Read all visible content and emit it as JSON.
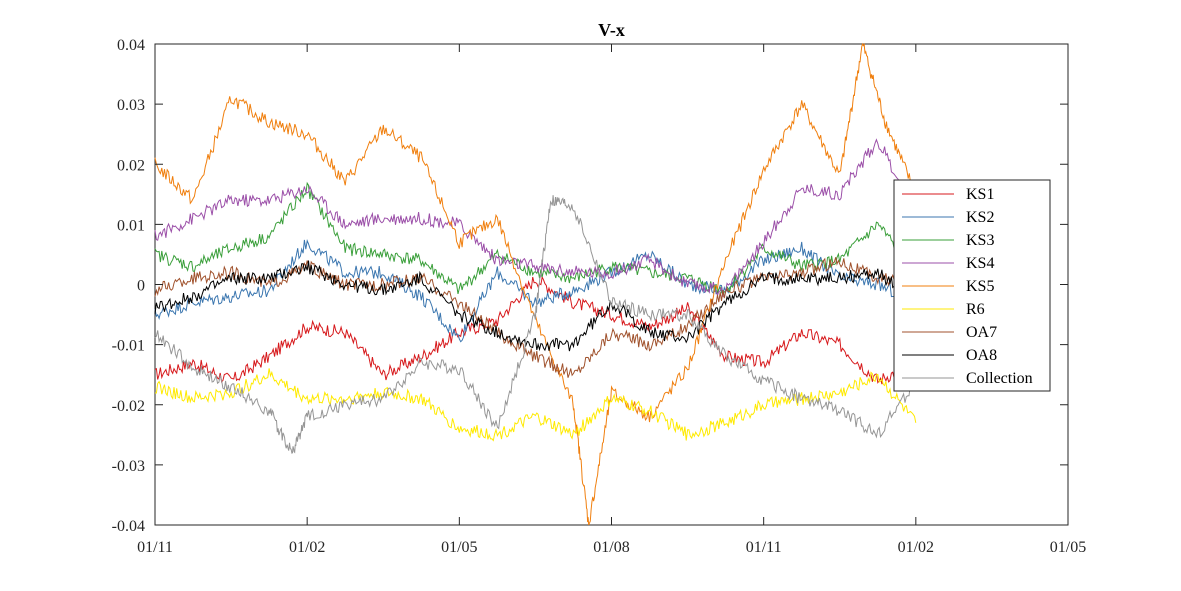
{
  "chart_data": {
    "type": "line",
    "title": "V-x",
    "xlabel": "",
    "ylabel": "",
    "x_tick_labels": [
      "01/11",
      "01/02",
      "01/05",
      "01/08",
      "01/11",
      "01/02",
      "01/05"
    ],
    "x_ticks": [
      0,
      1,
      2,
      3,
      4,
      5,
      6
    ],
    "xlim": [
      0,
      6
    ],
    "ylim": [
      -0.04,
      0.04
    ],
    "y_ticks": [
      -0.04,
      -0.03,
      -0.02,
      -0.01,
      0,
      0.01,
      0.02,
      0.03,
      0.04
    ],
    "y_tick_labels": [
      "-0.04",
      "-0.03",
      "-0.02",
      "-0.01",
      "0",
      "0.01",
      "0.02",
      "0.03",
      "0.04"
    ],
    "grid": false,
    "legend_position": "right",
    "x_unit_note": "x in tick intervals (01/11=0 ... 01/05=6)",
    "series": [
      {
        "name": "KS1",
        "color": "#d7191c",
        "x": [
          0,
          0.25,
          0.5,
          0.75,
          1,
          1.25,
          1.5,
          1.75,
          2,
          2.25,
          2.5,
          2.75,
          3,
          3.25,
          3.5,
          3.75,
          4,
          4.25,
          4.5,
          4.75,
          5
        ],
        "y": [
          -0.015,
          -0.013,
          -0.016,
          -0.012,
          -0.007,
          -0.008,
          -0.015,
          -0.012,
          -0.008,
          -0.006,
          0.001,
          -0.003,
          -0.005,
          -0.007,
          -0.004,
          -0.012,
          -0.013,
          -0.008,
          -0.01,
          -0.016,
          -0.013
        ]
      },
      {
        "name": "KS2",
        "color": "#3b76af",
        "x": [
          0,
          0.25,
          0.5,
          0.75,
          1,
          1.25,
          1.5,
          1.75,
          2,
          2.25,
          2.5,
          2.75,
          3,
          3.25,
          3.5,
          3.75,
          4,
          4.25,
          4.5,
          4.75,
          5
        ],
        "y": [
          -0.005,
          -0.003,
          -0.002,
          -0.001,
          0.007,
          0.002,
          0.002,
          -0.002,
          -0.009,
          0.002,
          -0.003,
          -0.001,
          0.002,
          0.005,
          0.0,
          -0.001,
          0.004,
          0.006,
          0.001,
          0.0,
          -0.003
        ]
      },
      {
        "name": "KS3",
        "color": "#3a9f3a",
        "x": [
          0,
          0.25,
          0.5,
          0.75,
          1,
          1.25,
          1.5,
          1.75,
          2,
          2.25,
          2.5,
          2.75,
          3,
          3.25,
          3.5,
          3.75,
          4,
          4.25,
          4.5,
          4.75,
          5
        ],
        "y": [
          0.005,
          0.003,
          0.006,
          0.008,
          0.016,
          0.006,
          0.005,
          0.004,
          -0.001,
          0.005,
          0.002,
          0.001,
          0.003,
          0.002,
          0.001,
          -0.001,
          0.006,
          0.003,
          0.004,
          0.01,
          0.002
        ]
      },
      {
        "name": "KS4",
        "color": "#9b4fa8",
        "x": [
          0,
          0.25,
          0.5,
          0.75,
          1,
          1.25,
          1.5,
          1.75,
          2,
          2.25,
          2.5,
          2.75,
          3,
          3.25,
          3.5,
          3.75,
          4,
          4.25,
          4.5,
          4.75,
          5
        ],
        "y": [
          0.008,
          0.011,
          0.014,
          0.014,
          0.016,
          0.01,
          0.011,
          0.011,
          0.01,
          0.004,
          0.003,
          0.002,
          0.002,
          0.004,
          0.0,
          -0.001,
          0.007,
          0.016,
          0.015,
          0.024,
          0.012
        ]
      },
      {
        "name": "KS5",
        "color": "#f07f0e",
        "x": [
          0,
          0.25,
          0.5,
          0.75,
          1,
          1.25,
          1.5,
          1.75,
          2,
          2.25,
          2.5,
          2.75,
          2.85,
          3,
          3.25,
          3.5,
          3.75,
          4,
          4.25,
          4.5,
          4.65,
          4.8,
          5
        ],
        "y": [
          0.02,
          0.014,
          0.031,
          0.027,
          0.025,
          0.017,
          0.026,
          0.021,
          0.007,
          0.011,
          -0.006,
          -0.02,
          -0.04,
          -0.018,
          -0.022,
          -0.014,
          0.004,
          0.019,
          0.03,
          0.018,
          0.04,
          0.027,
          0.015
        ]
      },
      {
        "name": "R6",
        "color": "#ffea00",
        "x": [
          0,
          0.25,
          0.5,
          0.75,
          1,
          1.25,
          1.5,
          1.75,
          2,
          2.25,
          2.5,
          2.75,
          3,
          3.25,
          3.5,
          3.75,
          4,
          4.25,
          4.5,
          4.75,
          5
        ],
        "y": [
          -0.017,
          -0.019,
          -0.018,
          -0.015,
          -0.019,
          -0.019,
          -0.018,
          -0.019,
          -0.024,
          -0.025,
          -0.022,
          -0.025,
          -0.019,
          -0.021,
          -0.025,
          -0.023,
          -0.02,
          -0.019,
          -0.018,
          -0.015,
          -0.023
        ]
      },
      {
        "name": "OA7",
        "color": "#a0522d",
        "x": [
          0,
          0.25,
          0.5,
          0.75,
          1,
          1.25,
          1.5,
          1.75,
          2,
          2.25,
          2.5,
          2.75,
          3,
          3.25,
          3.5,
          3.75,
          4,
          4.25,
          4.5,
          4.75,
          5
        ],
        "y": [
          -0.001,
          0.001,
          0.002,
          0.0,
          0.003,
          0.0,
          0.0,
          0.001,
          -0.003,
          -0.008,
          -0.012,
          -0.015,
          -0.008,
          -0.01,
          -0.007,
          -0.001,
          0.001,
          0.002,
          0.004,
          0.001,
          0.001
        ]
      },
      {
        "name": "OA8",
        "color": "#000000",
        "x": [
          0,
          0.25,
          0.5,
          0.75,
          1,
          1.25,
          1.5,
          1.75,
          2,
          2.25,
          2.5,
          2.75,
          3,
          3.25,
          3.5,
          3.75,
          4,
          4.25,
          4.5,
          4.75,
          5
        ],
        "y": [
          -0.004,
          -0.002,
          0.001,
          0.001,
          0.003,
          0.0,
          -0.001,
          0.001,
          -0.005,
          -0.008,
          -0.01,
          -0.01,
          -0.003,
          -0.008,
          -0.009,
          -0.003,
          0.001,
          0.001,
          0.001,
          0.002,
          -0.003
        ]
      },
      {
        "name": "Collection",
        "color": "#969696",
        "x": [
          0,
          0.25,
          0.5,
          0.75,
          0.9,
          1,
          1.25,
          1.5,
          1.75,
          2,
          2.25,
          2.5,
          2.6,
          2.75,
          3,
          3.25,
          3.5,
          3.75,
          4,
          4.25,
          4.5,
          4.75,
          5
        ],
        "y": [
          -0.008,
          -0.014,
          -0.017,
          -0.021,
          -0.028,
          -0.022,
          -0.02,
          -0.019,
          -0.013,
          -0.014,
          -0.024,
          -0.005,
          0.014,
          0.013,
          -0.003,
          -0.005,
          -0.005,
          -0.012,
          -0.016,
          -0.019,
          -0.021,
          -0.025,
          -0.016
        ]
      }
    ]
  }
}
